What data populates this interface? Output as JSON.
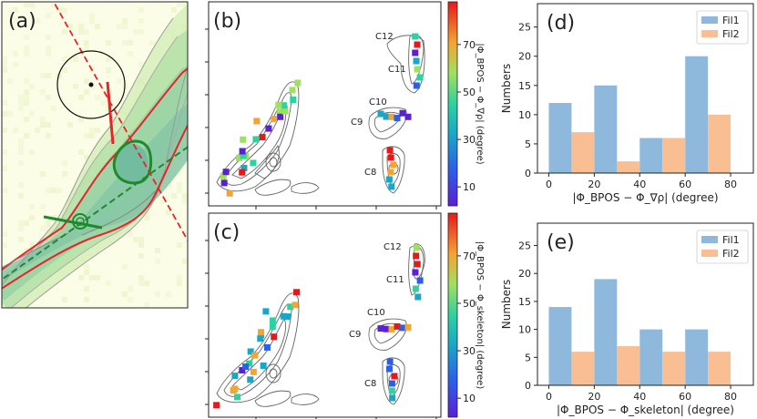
{
  "panels": {
    "a": {
      "label": "(a)"
    },
    "b": {
      "label": "(b)",
      "regions": [
        "C12",
        "C11",
        "C10",
        "C9",
        "C8"
      ],
      "colorbar_label": "|Φ_BPOS − Φ_∇ρ| (degree)",
      "colorbar_ticks": [
        10,
        30,
        50,
        70
      ]
    },
    "c": {
      "label": "(c)",
      "regions": [
        "C12",
        "C11",
        "C10",
        "C9",
        "C8"
      ],
      "colorbar_label": "|Φ_BPOS − Φ_skeleton| (degree)",
      "colorbar_ticks": [
        10,
        30,
        50,
        70
      ]
    }
  },
  "chart_data": [
    {
      "type": "bar",
      "panel_label": "(d)",
      "categories": [
        10,
        30,
        50,
        70
      ],
      "series": [
        {
          "name": "Fil1",
          "values": [
            12,
            15,
            6,
            20
          ],
          "color": "#8fb9dc"
        },
        {
          "name": "Fil2",
          "values": [
            7,
            2,
            6,
            10
          ],
          "color": "#f9be92"
        }
      ],
      "xlabel": "|Φ_BPOS − Φ_∇ρ| (degree)",
      "ylabel": "Numbers",
      "xlim": [
        -5,
        90
      ],
      "ylim": [
        0,
        29
      ],
      "xticks": [
        0,
        20,
        40,
        60,
        80
      ],
      "yticks": [
        0,
        5,
        10,
        15,
        20,
        25
      ],
      "legend": "top-right"
    },
    {
      "type": "bar",
      "panel_label": "(e)",
      "categories": [
        10,
        30,
        50,
        70
      ],
      "series": [
        {
          "name": "Fil1",
          "values": [
            14,
            19,
            10,
            10
          ],
          "color": "#8fb9dc"
        },
        {
          "name": "Fil2",
          "values": [
            6,
            7,
            6,
            6
          ],
          "color": "#f9be92"
        }
      ],
      "xlabel": "|Φ_BPOS − Φ_skeleton| (degree)",
      "ylabel": "Numbers",
      "xlim": [
        -5,
        90
      ],
      "ylim": [
        0,
        29
      ],
      "xticks": [
        0,
        20,
        40,
        60,
        80
      ],
      "yticks": [
        0,
        5,
        10,
        15,
        20,
        25
      ],
      "legend": "top-right"
    }
  ]
}
